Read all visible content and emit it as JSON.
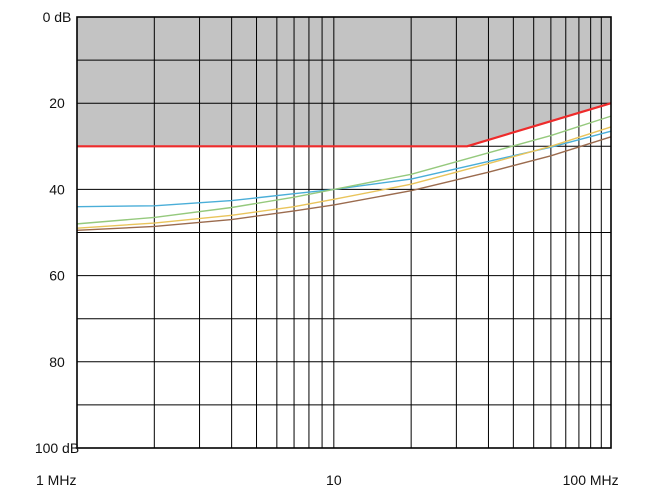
{
  "chart_data": {
    "type": "line",
    "x_scale": "log",
    "xlim": [
      1,
      120
    ],
    "ylim": [
      0,
      100
    ],
    "y_inverted": true,
    "grid": true,
    "x_ticks": [
      {
        "value": 1,
        "label": "1 MHz"
      },
      {
        "value": 10,
        "label": "10"
      },
      {
        "value": 100,
        "label": "100 MHz"
      }
    ],
    "y_ticks": [
      {
        "value": 0,
        "label": "0 dB"
      },
      {
        "value": 20,
        "label": "20"
      },
      {
        "value": 40,
        "label": "40"
      },
      {
        "value": 60,
        "label": "60"
      },
      {
        "value": 80,
        "label": "80"
      },
      {
        "value": 100,
        "label": "100 dB"
      }
    ],
    "limit_region": {
      "color": "#c3c3c3",
      "x": [
        1,
        33,
        120
      ],
      "y": [
        30,
        30,
        20
      ]
    },
    "series": [
      {
        "color": "#ee2b2b",
        "width": 2.2,
        "x": [
          1,
          33,
          120
        ],
        "y": [
          30,
          30,
          20
        ]
      },
      {
        "color": "#4aaed8",
        "width": 1.4,
        "x": [
          1,
          2,
          4,
          7,
          10,
          20,
          40,
          70,
          120
        ],
        "y": [
          44,
          43.8,
          42.6,
          41,
          40,
          37.6,
          33.5,
          30.2,
          26.5
        ]
      },
      {
        "color": "#95c97d",
        "width": 1.4,
        "x": [
          1,
          2,
          4,
          7,
          10,
          20,
          40,
          70,
          120
        ],
        "y": [
          48,
          46.5,
          44.2,
          41.8,
          40,
          36.5,
          31.5,
          27.5,
          23
        ]
      },
      {
        "color": "#e9c45b",
        "width": 1.4,
        "x": [
          1,
          2,
          4,
          7,
          10,
          20,
          40,
          70,
          120
        ],
        "y": [
          49,
          47.8,
          46,
          44,
          42.3,
          38.8,
          34,
          30,
          25.5
        ]
      },
      {
        "color": "#9b6b4e",
        "width": 1.4,
        "x": [
          1,
          2,
          4,
          7,
          10,
          20,
          40,
          70,
          120
        ],
        "y": [
          49.5,
          48.6,
          47,
          45,
          43.6,
          40.3,
          36,
          32.2,
          27.8
        ]
      }
    ]
  }
}
